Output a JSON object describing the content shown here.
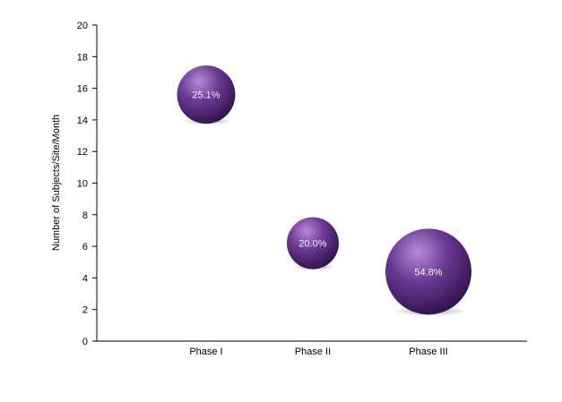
{
  "chart_data": {
    "type": "bubble",
    "title": "",
    "xlabel": "",
    "ylabel": "Number of Subjects/Site/Month",
    "categories": [
      "Phase I",
      "Phase II",
      "Phase III"
    ],
    "values": [
      15.6,
      6.2,
      4.4
    ],
    "bubble_share_percent": [
      25.1,
      20.0,
      54.8
    ],
    "bubble_labels": [
      "25.1%",
      "20.0%",
      "54.8%"
    ],
    "ylim": [
      0,
      20
    ],
    "yticks": [
      "0",
      "2",
      "4",
      "6",
      "8",
      "10",
      "12",
      "14",
      "16",
      "18",
      "20"
    ],
    "grid": false,
    "legend": "none",
    "colors": {
      "bubble_light": "#b98ad8",
      "bubble_mid": "#6a3a93",
      "bubble_dark": "#2e0f4a",
      "bubble_label": "#f2eaf8",
      "axis": "#000000"
    }
  }
}
